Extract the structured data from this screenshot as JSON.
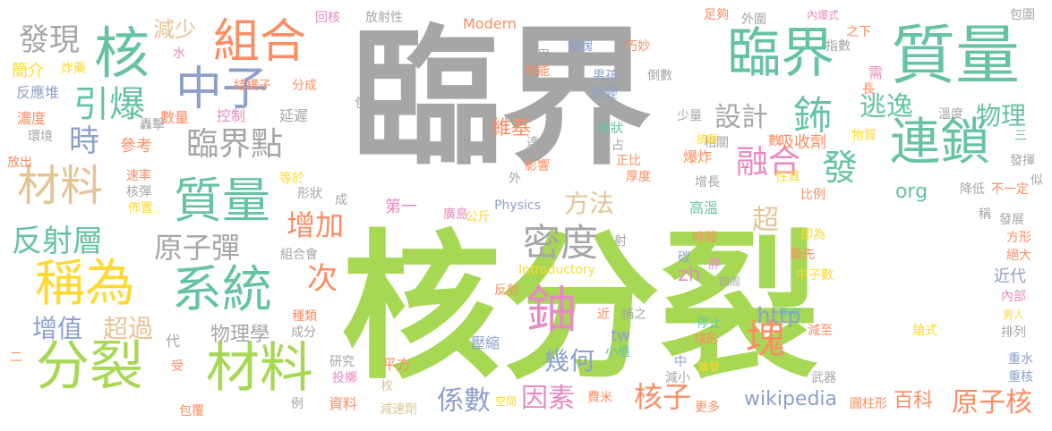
{
  "colors": {
    "gray": "#a6a6a6",
    "green": "#a6d854",
    "teal": "#66c2a5",
    "orange": "#fc8d62",
    "blue": "#8da0cb",
    "pink": "#e78ac3",
    "yellow": "#ffd92f",
    "tan": "#e5c494",
    "dkgray": "#b3b3b3"
  },
  "words": [
    {
      "text": "臨界",
      "color": "gray"
    },
    {
      "text": "核分裂",
      "color": "green"
    },
    {
      "text": "臨界",
      "color": "teal"
    },
    {
      "text": "質量",
      "color": "teal"
    },
    {
      "text": "核",
      "color": "teal"
    },
    {
      "text": "組合",
      "color": "orange"
    },
    {
      "text": "中子",
      "color": "blue"
    },
    {
      "text": "發現",
      "color": "gray"
    },
    {
      "text": "減少",
      "color": "tan"
    },
    {
      "text": "引爆",
      "color": "teal"
    },
    {
      "text": "時",
      "color": "blue"
    },
    {
      "text": "材料",
      "color": "tan"
    },
    {
      "text": "臨界點",
      "color": "gray"
    },
    {
      "text": "質量",
      "color": "teal"
    },
    {
      "text": "連鎖",
      "color": "teal"
    },
    {
      "text": "鈽",
      "color": "teal"
    },
    {
      "text": "發",
      "color": "teal"
    },
    {
      "text": "逃逸",
      "color": "teal"
    },
    {
      "text": "設計",
      "color": "gray"
    },
    {
      "text": "物理",
      "color": "teal"
    },
    {
      "text": "融合",
      "color": "pink"
    },
    {
      "text": "反射層",
      "color": "teal"
    },
    {
      "text": "稱為",
      "color": "yellow"
    },
    {
      "text": "系統",
      "color": "teal"
    },
    {
      "text": "原子彈",
      "color": "gray"
    },
    {
      "text": "密度",
      "color": "gray"
    },
    {
      "text": "增加",
      "color": "orange"
    },
    {
      "text": "方法",
      "color": "tan"
    },
    {
      "text": "超",
      "color": "tan"
    },
    {
      "text": "分裂",
      "color": "green"
    },
    {
      "text": "材料",
      "color": "green"
    },
    {
      "text": "鈾",
      "color": "pink"
    },
    {
      "text": "塊",
      "color": "orange"
    },
    {
      "text": "次",
      "color": "orange"
    },
    {
      "text": "增值",
      "color": "blue"
    },
    {
      "text": "超過",
      "color": "tan"
    },
    {
      "text": "係數",
      "color": "blue"
    },
    {
      "text": "因素",
      "color": "pink"
    },
    {
      "text": "核子",
      "color": "orange"
    },
    {
      "text": "原子核",
      "color": "orange"
    },
    {
      "text": "幾何",
      "color": "blue"
    },
    {
      "text": "wikipedia",
      "color": "blue"
    },
    {
      "text": "zh",
      "color": "pink"
    },
    {
      "text": "http",
      "color": "blue"
    },
    {
      "text": "tw",
      "color": "blue"
    },
    {
      "text": "org",
      "color": "teal"
    },
    {
      "text": "百科",
      "color": "orange"
    },
    {
      "text": "維基",
      "color": "orange"
    },
    {
      "text": "物理學",
      "color": "gray"
    },
    {
      "text": "簡介",
      "color": "yellow"
    },
    {
      "text": "反應堆",
      "color": "blue"
    },
    {
      "text": "濃度",
      "color": "orange"
    },
    {
      "text": "環境",
      "color": "gray"
    },
    {
      "text": "放出",
      "color": "orange"
    },
    {
      "text": "參考",
      "color": "orange"
    },
    {
      "text": "數量",
      "color": "orange"
    },
    {
      "text": "控制",
      "color": "pink"
    },
    {
      "text": "延遲",
      "color": "gray"
    },
    {
      "text": "結構子",
      "color": "orange"
    },
    {
      "text": "分成",
      "color": "orange"
    },
    {
      "text": "回核",
      "color": "pink"
    },
    {
      "text": "放射性",
      "color": "gray"
    },
    {
      "text": "Modern",
      "color": "orange"
    },
    {
      "text": "作用",
      "color": "gray"
    },
    {
      "text": "核能",
      "color": "orange"
    },
    {
      "text": "鈾塊",
      "color": "blue"
    },
    {
      "text": "巧妙",
      "color": "orange"
    },
    {
      "text": "男孩",
      "color": "blue"
    },
    {
      "text": "倒數",
      "color": "gray"
    },
    {
      "text": "衰變",
      "color": "blue"
    },
    {
      "text": "足夠",
      "color": "orange"
    },
    {
      "text": "外圍",
      "color": "gray"
    },
    {
      "text": "內爆式",
      "color": "pink"
    },
    {
      "text": "之下",
      "color": "orange"
    },
    {
      "text": "指數",
      "color": "gray"
    },
    {
      "text": "包圍",
      "color": "gray"
    },
    {
      "text": "需",
      "color": "pink"
    },
    {
      "text": "長",
      "color": "orange"
    },
    {
      "text": "溫度",
      "color": "gray"
    },
    {
      "text": "少量",
      "color": "gray"
    },
    {
      "text": "吸收劑",
      "color": "orange"
    },
    {
      "text": "數",
      "color": "orange"
    },
    {
      "text": "相關",
      "color": "gray"
    },
    {
      "text": "物質",
      "color": "yellow"
    },
    {
      "text": "發揮",
      "color": "gray"
    },
    {
      "text": "三",
      "color": "teal"
    },
    {
      "text": "似",
      "color": "gray"
    },
    {
      "text": "擠壓",
      "color": "yellow"
    },
    {
      "text": "爆炸",
      "color": "orange"
    },
    {
      "text": "正比",
      "color": "orange"
    },
    {
      "text": "厚度",
      "color": "orange"
    },
    {
      "text": "性質",
      "color": "yellow"
    },
    {
      "text": "比例",
      "color": "orange"
    },
    {
      "text": "降低",
      "color": "gray"
    },
    {
      "text": "不一定",
      "color": "orange"
    },
    {
      "text": "影響",
      "color": "orange"
    },
    {
      "text": "增長",
      "color": "gray"
    },
    {
      "text": "球狀",
      "color": "teal"
    },
    {
      "text": "占",
      "color": "gray"
    },
    {
      "text": "達",
      "color": "gray"
    },
    {
      "text": "外",
      "color": "gray"
    },
    {
      "text": "高溫",
      "color": "teal"
    },
    {
      "text": "時間",
      "color": "orange"
    },
    {
      "text": "即為",
      "color": "yellow"
    },
    {
      "text": "方形",
      "color": "orange"
    },
    {
      "text": "絕大",
      "color": "orange"
    },
    {
      "text": "稱",
      "color": "gray"
    },
    {
      "text": "發展",
      "color": "gray"
    },
    {
      "text": "碳",
      "color": "blue"
    },
    {
      "text": "胖",
      "color": "pink"
    },
    {
      "text": "四周",
      "color": "gray"
    },
    {
      "text": "最先",
      "color": "orange"
    },
    {
      "text": "中子數",
      "color": "yellow"
    },
    {
      "text": "近代",
      "color": "blue"
    },
    {
      "text": "內部",
      "color": "pink"
    },
    {
      "text": "男人",
      "color": "yellow"
    },
    {
      "text": "排列",
      "color": "gray"
    },
    {
      "text": "中空",
      "color": "teal"
    },
    {
      "text": "減至",
      "color": "orange"
    },
    {
      "text": "停止",
      "color": "teal"
    },
    {
      "text": "球形",
      "color": "orange"
    },
    {
      "text": "鎗式",
      "color": "yellow"
    },
    {
      "text": "重水",
      "color": "blue"
    },
    {
      "text": "重核",
      "color": "blue"
    },
    {
      "text": "鎗管",
      "color": "yellow"
    },
    {
      "text": "中",
      "color": "blue"
    },
    {
      "text": "減小",
      "color": "gray"
    },
    {
      "text": "武器",
      "color": "gray"
    },
    {
      "text": "圓柱形",
      "color": "orange"
    },
    {
      "text": "更多",
      "color": "orange"
    },
    {
      "text": "稱之",
      "color": "gray"
    },
    {
      "text": "小值",
      "color": "teal"
    },
    {
      "text": "近",
      "color": "orange"
    },
    {
      "text": "壓縮",
      "color": "blue"
    },
    {
      "text": "平方",
      "color": "orange"
    },
    {
      "text": "Physics",
      "color": "blue"
    },
    {
      "text": "Introductory",
      "color": "yellow"
    },
    {
      "text": "反射",
      "color": "orange"
    },
    {
      "text": "空間",
      "color": "yellow"
    },
    {
      "text": "費米",
      "color": "orange"
    },
    {
      "text": "減速劑",
      "color": "tan"
    },
    {
      "text": "枚",
      "color": "tan"
    },
    {
      "text": "資料",
      "color": "orange"
    },
    {
      "text": "例",
      "color": "gray"
    },
    {
      "text": "包覆",
      "color": "orange"
    },
    {
      "text": "投擲",
      "color": "pink"
    },
    {
      "text": "研究",
      "color": "gray"
    },
    {
      "text": "受",
      "color": "orange"
    },
    {
      "text": "二",
      "color": "orange"
    },
    {
      "text": "種類",
      "color": "orange"
    },
    {
      "text": "成分",
      "color": "gray"
    },
    {
      "text": "組合會",
      "color": "gray"
    },
    {
      "text": "形狀",
      "color": "gray"
    },
    {
      "text": "成",
      "color": "gray"
    },
    {
      "text": "佈置",
      "color": "yellow"
    },
    {
      "text": "等於",
      "color": "yellow"
    },
    {
      "text": "速率",
      "color": "orange"
    },
    {
      "text": "核彈",
      "color": "gray"
    },
    {
      "text": "代",
      "color": "gray"
    },
    {
      "text": "第一",
      "color": "pink"
    },
    {
      "text": "廣島",
      "color": "pink"
    },
    {
      "text": "公斤",
      "color": "yellow"
    },
    {
      "text": "射",
      "color": "gray"
    },
    {
      "text": "轟擊",
      "color": "gray"
    },
    {
      "text": "炸藥",
      "color": "yellow"
    },
    {
      "text": "水",
      "color": "pink"
    },
    {
      "text": "包",
      "color": "gray"
    }
  ]
}
